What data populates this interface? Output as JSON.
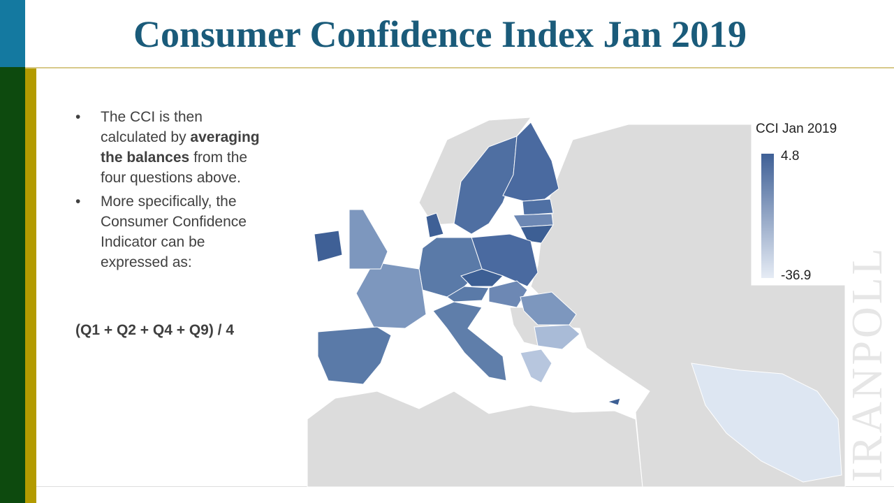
{
  "header": {
    "title": "Consumer Confidence Index Jan 2019"
  },
  "bullets": [
    {
      "segments": [
        {
          "text": "The CCI is then calculated by "
        },
        {
          "text": "averaging the balances",
          "bold": true
        },
        {
          "text": " from the four questions above."
        }
      ]
    },
    {
      "segments": [
        {
          "text": "More specifically, the Consumer Confidence Indicator can be expressed as:"
        }
      ]
    }
  ],
  "formula": "(Q1 + Q2 + Q4 + Q9) / 4",
  "legend": {
    "title": "CCI Jan 2019",
    "max": 4.8,
    "min": -36.9,
    "colors": [
      "#3f6096",
      "#e6ecf5"
    ]
  },
  "watermark": "IRANPOLL"
}
